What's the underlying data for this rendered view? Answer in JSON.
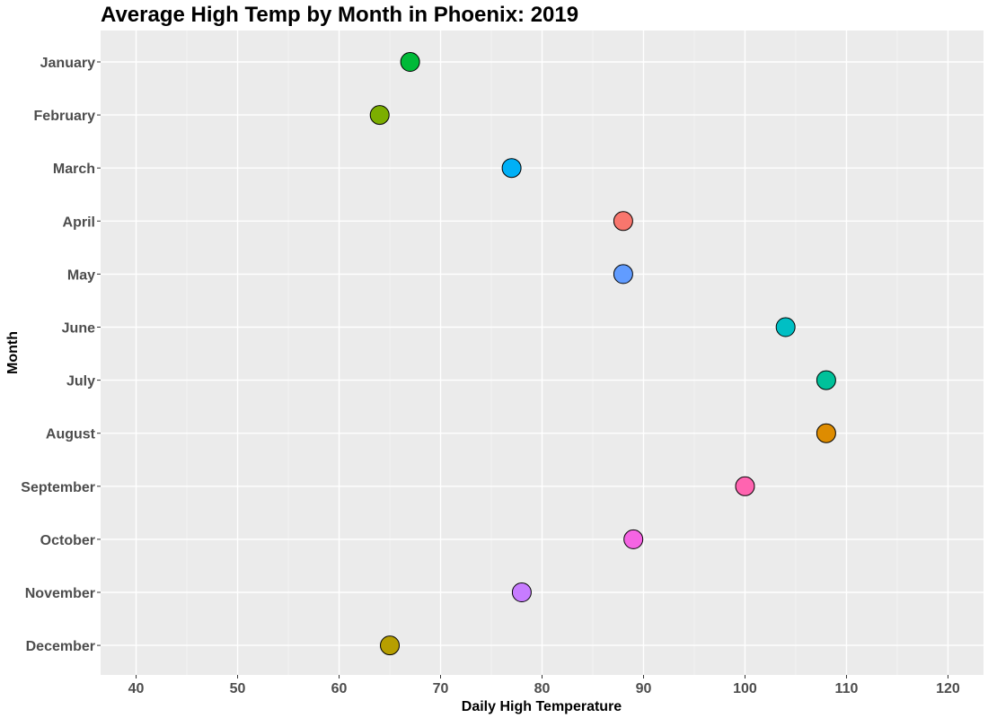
{
  "chart_data": {
    "type": "scatter",
    "title": "Average High Temp by Month in Phoenix: 2019",
    "xlabel": "Daily High Temperature",
    "ylabel": "Month",
    "xlim": [
      36.5,
      123.5
    ],
    "x_ticks": [
      40,
      50,
      60,
      70,
      80,
      90,
      100,
      110,
      120
    ],
    "categories": [
      "January",
      "February",
      "March",
      "April",
      "May",
      "June",
      "July",
      "August",
      "September",
      "October",
      "November",
      "December"
    ],
    "values": [
      67,
      64,
      77,
      88,
      88,
      104,
      108,
      108,
      100,
      89,
      78,
      65
    ],
    "colors": [
      "#00ba38",
      "#7cae00",
      "#00b0f6",
      "#f8766d",
      "#619cff",
      "#00bfc4",
      "#00c19a",
      "#de8c00",
      "#ff64b0",
      "#f564e3",
      "#c77cff",
      "#b79f00"
    ],
    "grid": true,
    "background": "#ebebeb",
    "legend": "none"
  }
}
